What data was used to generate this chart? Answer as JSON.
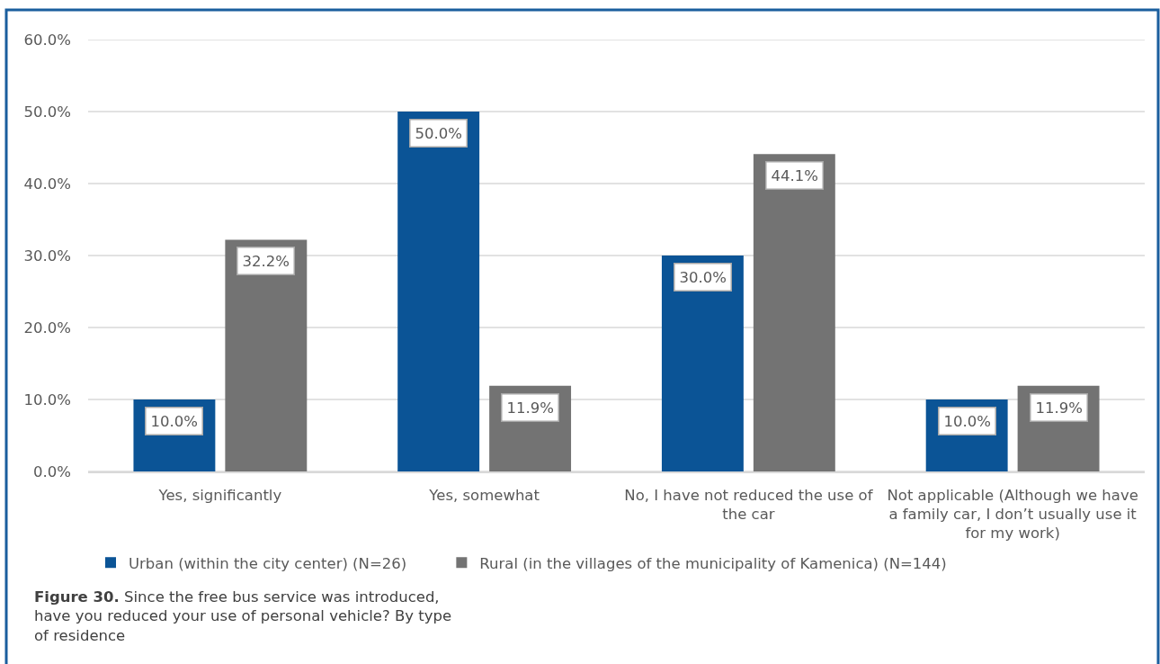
{
  "chart_data": {
    "type": "bar",
    "categories": [
      "Yes, significantly",
      "Yes, somewhat",
      "No, I have not reduced the use of the car",
      "Not applicable (Although we have a family car, I don’t usually use it for my work)"
    ],
    "series": [
      {
        "name": "Urban (within the city center) (N=26)",
        "color": "#0b5496",
        "values": [
          10.0,
          50.0,
          30.0,
          10.0
        ],
        "value_labels": [
          "10.0%",
          "50.0%",
          "30.0%",
          "10.0%"
        ]
      },
      {
        "name": "Rural (in the villages of the municipality of Kamenica) (N=144)",
        "color": "#737373",
        "values": [
          32.2,
          11.9,
          44.1,
          11.9
        ],
        "value_labels": [
          "32.2%",
          "11.9%",
          "44.1%",
          "11.9%"
        ]
      }
    ],
    "ylim": [
      0,
      60
    ],
    "yticks": [
      {
        "value": 0,
        "label": "0.0%"
      },
      {
        "value": 10,
        "label": "10.0%"
      },
      {
        "value": 20,
        "label": "20.0%"
      },
      {
        "value": 30,
        "label": "30.0%"
      },
      {
        "value": 40,
        "label": "40.0%"
      },
      {
        "value": 50,
        "label": "50.0%"
      },
      {
        "value": 60,
        "label": "60.0%"
      }
    ],
    "grid": "y",
    "legend": "bottom",
    "annotations": [
      "Figure 30. Since the free bus service was introduced, have you reduced your use of personal vehicle? By type of residence"
    ]
  }
}
